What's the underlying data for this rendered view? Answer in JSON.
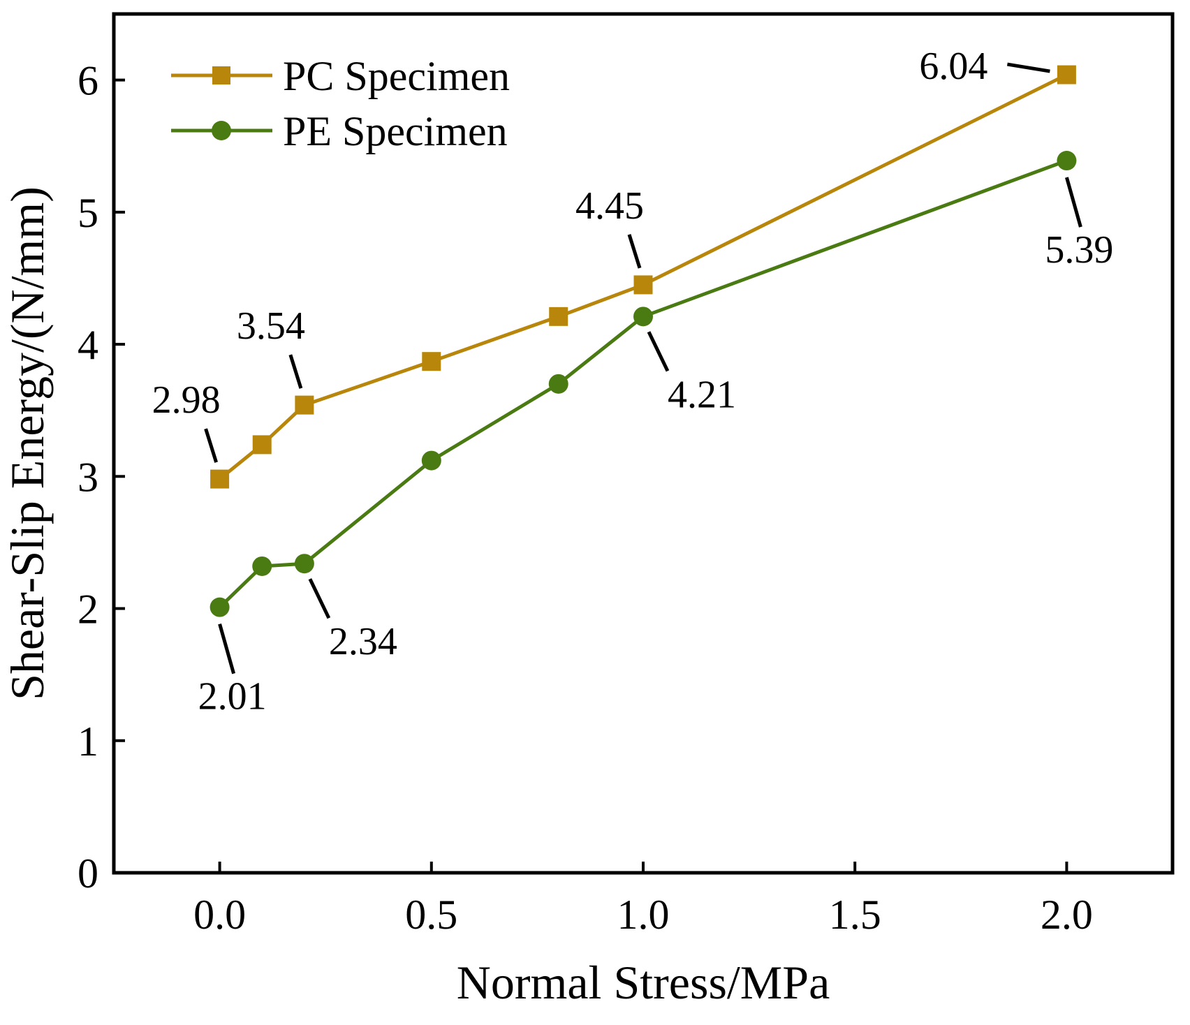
{
  "chart_data": {
    "type": "line",
    "title": "",
    "xlabel": "Normal Stress/MPa",
    "ylabel": "Shear-Slip Energy/(N/mm)",
    "xlim": [
      -0.25,
      2.25
    ],
    "ylim": [
      0,
      6.5
    ],
    "xticks": [
      0.0,
      0.5,
      1.0,
      1.5,
      2.0
    ],
    "xtick_labels": [
      "0.0",
      "0.5",
      "1.0",
      "1.5",
      "2.0"
    ],
    "yticks": [
      0,
      1,
      2,
      3,
      4,
      5,
      6
    ],
    "ytick_labels": [
      "0",
      "1",
      "2",
      "3",
      "4",
      "5",
      "6"
    ],
    "grid": false,
    "legend_position": "top-left",
    "series": [
      {
        "name": "PC Specimen",
        "marker": "square",
        "color": "#B8860B",
        "x": [
          0.0,
          0.1,
          0.2,
          0.5,
          0.8,
          1.0,
          2.0
        ],
        "y": [
          2.98,
          3.24,
          3.54,
          3.87,
          4.21,
          4.45,
          6.04
        ]
      },
      {
        "name": "PE Specimen",
        "marker": "circle",
        "color": "#4A7A12",
        "x": [
          0.0,
          0.1,
          0.2,
          0.5,
          0.8,
          1.0,
          2.0
        ],
        "y": [
          2.01,
          2.32,
          2.34,
          3.12,
          3.7,
          4.21,
          5.39
        ]
      }
    ],
    "annotations": [
      {
        "series": 0,
        "point": 0,
        "text": "2.98",
        "placement": "upper-left"
      },
      {
        "series": 0,
        "point": 2,
        "text": "3.54",
        "placement": "upper-left"
      },
      {
        "series": 0,
        "point": 5,
        "text": "4.45",
        "placement": "upper-left"
      },
      {
        "series": 0,
        "point": 6,
        "text": "6.04",
        "placement": "left"
      },
      {
        "series": 1,
        "point": 0,
        "text": "2.01",
        "placement": "below"
      },
      {
        "series": 1,
        "point": 2,
        "text": "2.34",
        "placement": "lower-right"
      },
      {
        "series": 1,
        "point": 5,
        "text": "4.21",
        "placement": "lower-right"
      },
      {
        "series": 1,
        "point": 6,
        "text": "5.39",
        "placement": "below"
      }
    ]
  }
}
